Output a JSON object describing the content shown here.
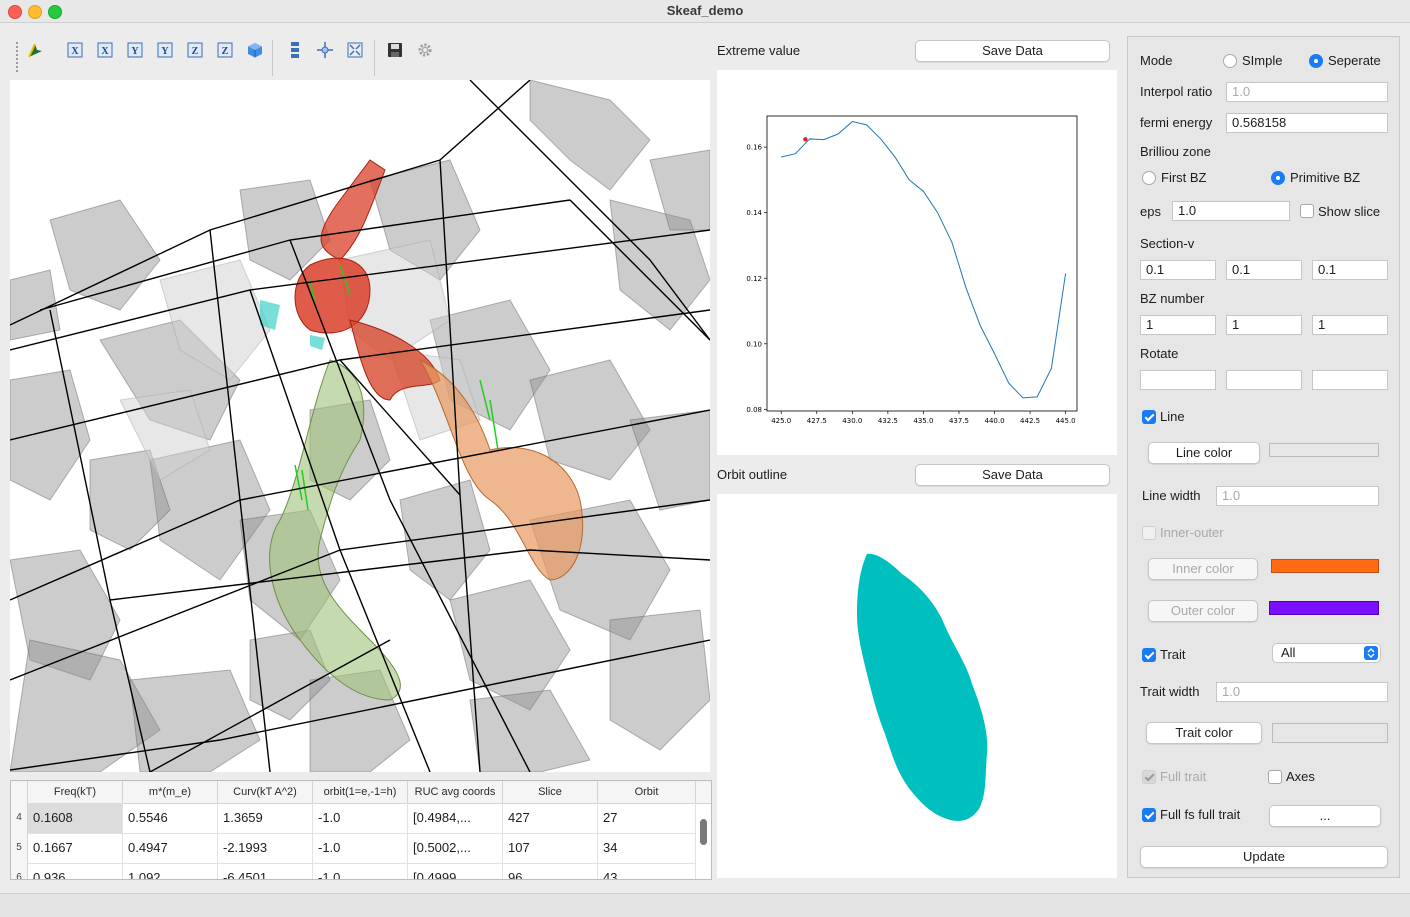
{
  "window": {
    "title": "Skeaf_demo"
  },
  "toolbar": {
    "icons": [
      "pick-icon",
      "x-axis-view-icon",
      "x-axis-reverse-icon",
      "y-axis-view-icon",
      "y-axis-reverse-icon",
      "z-axis-view-icon",
      "z-axis-reverse-icon",
      "iso-view-icon",
      "stack-view-icon",
      "center-icon",
      "fit-view-icon",
      "save-icon",
      "gear-icon"
    ]
  },
  "table": {
    "headers": [
      "Freq(kT)",
      "m*(m_e)",
      "Curv(kT A^2)",
      "orbit(1=e,-1=h)",
      "RUC avg coords",
      "Slice",
      "Orbit"
    ],
    "rows": [
      {
        "num": "4",
        "cells": [
          "0.1608",
          "0.5546",
          "1.3659",
          "-1.0",
          "[0.4984,...",
          "427",
          "27"
        ]
      },
      {
        "num": "5",
        "cells": [
          "0.1667",
          "0.4947",
          "-2.1993",
          "-1.0",
          "[0.5002,...",
          "107",
          "34"
        ]
      },
      {
        "num": "6",
        "cells": [
          "0.936",
          "1.092",
          "-6.4501",
          "-1.0",
          "[0.4999",
          "96",
          "43"
        ]
      }
    ]
  },
  "extreme": {
    "label": "Extreme value",
    "save": "Save Data"
  },
  "orbit": {
    "label": "Orbit outline",
    "save": "Save Data"
  },
  "chart_data": {
    "type": "line",
    "x": [
      425.0,
      426.0,
      427.0,
      428.0,
      429.0,
      430.0,
      431.0,
      432.0,
      433.0,
      434.0,
      435.0,
      436.0,
      437.0,
      438.0,
      439.0,
      440.0,
      441.0,
      442.0,
      443.0,
      444.0,
      445.0
    ],
    "y": [
      0.157,
      0.158,
      0.1625,
      0.1623,
      0.164,
      0.1678,
      0.1668,
      0.1625,
      0.157,
      0.15,
      0.1465,
      0.14,
      0.131,
      0.117,
      0.1055,
      0.097,
      0.088,
      0.0835,
      0.0838,
      0.0925,
      0.1215
    ],
    "highlight": {
      "x": 426.7,
      "y": 0.1624,
      "color": "#d62728"
    },
    "xticks": [
      "425.0",
      "427.5",
      "430.0",
      "432.5",
      "435.0",
      "437.5",
      "440.0",
      "442.5",
      "445.0"
    ],
    "yticks": [
      "0.08",
      "0.10",
      "0.12",
      "0.14",
      "0.16"
    ],
    "xlim": [
      424.0,
      445.8
    ],
    "ylim": [
      0.0795,
      0.1695
    ],
    "line_color": "#1f77b4"
  },
  "orbit_shape": {
    "color": "#00bfbf"
  },
  "side": {
    "mode_label": "Mode",
    "mode_simple": "SImple",
    "mode_seperate": "Seperate",
    "interpol_label": "Interpol  ratio",
    "interpol_placeholder": "1.0",
    "fermi_label": "fermi energy",
    "fermi_value": "0.568158",
    "bz_label": "Brilliou zone",
    "first_bz": "First BZ",
    "primitive_bz": "Primitive BZ",
    "eps_label": "eps",
    "eps_value": "1.0",
    "show_slice": "Show slice",
    "section_label": "Section-v",
    "section_values": [
      "0.1",
      "0.1",
      "0.1"
    ],
    "bznum_label": "BZ number",
    "bznum_values": [
      "1",
      "1",
      "1"
    ],
    "rotate_label": "Rotate",
    "line_label": "Line",
    "line_color_btn": "Line color",
    "line_width_label": "Line width",
    "line_width_placeholder": "1.0",
    "inner_outer": "Inner-outer",
    "inner_color_btn": "Inner color",
    "outer_color_btn": "Outer color",
    "inner_color": "#ff6a13",
    "outer_color": "#7a10ff",
    "trait_label": "Trait",
    "trait_select": "All",
    "trait_width_label": "Trait width",
    "trait_width_placeholder": "1.0",
    "trait_color_btn": "Trait color",
    "full_trait": "Full trait",
    "axes": "Axes",
    "full_fs": "Full fs full trait",
    "more_btn": "...",
    "update_btn": "Update"
  }
}
